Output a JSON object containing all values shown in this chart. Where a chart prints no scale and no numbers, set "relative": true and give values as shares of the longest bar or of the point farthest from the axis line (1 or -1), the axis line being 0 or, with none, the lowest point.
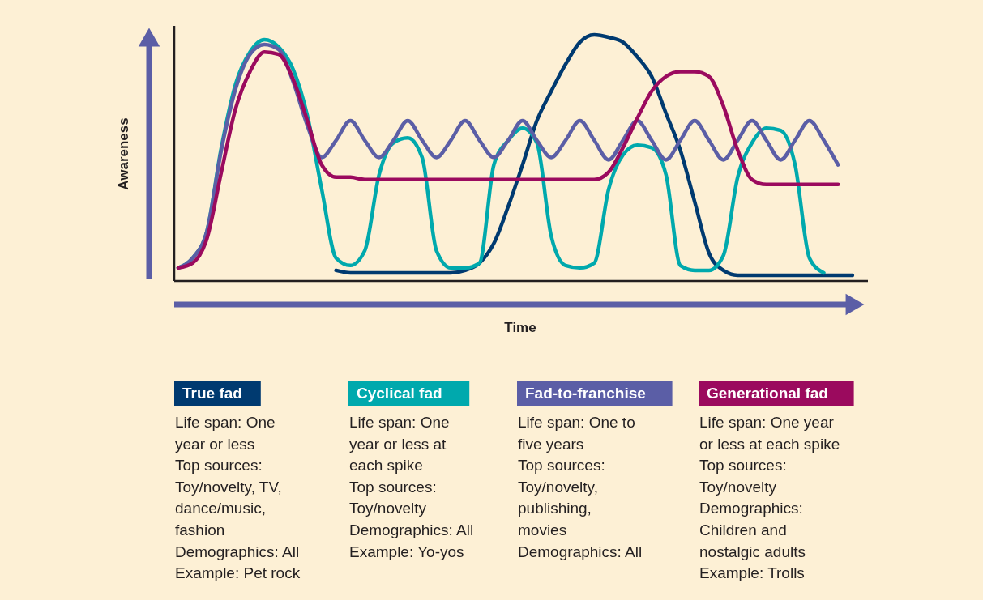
{
  "chart_data": {
    "type": "line",
    "relative": true,
    "xlabel": "Time",
    "ylabel": "Awareness",
    "legend": "bottom",
    "categories": [
      null,
      null,
      null,
      null,
      null,
      null,
      null,
      null,
      null,
      null,
      null,
      null,
      null,
      null,
      null,
      null,
      null,
      null,
      null,
      null,
      null,
      null,
      null,
      null,
      null,
      null,
      null,
      null,
      null,
      null,
      null,
      null,
      null,
      null,
      null,
      null,
      null,
      null,
      null,
      null,
      null,
      null,
      null,
      null,
      null,
      null,
      null,
      null,
      null
    ],
    "series": [
      {
        "name": "True fad",
        "color": "#003a70",
        "values": [
          null,
          null,
          null,
          null,
          null,
          null,
          null,
          null,
          null,
          null,
          null,
          0.04,
          0.03,
          0.03,
          0.03,
          0.03,
          0.03,
          0.03,
          0.03,
          0.03,
          0.04,
          0.07,
          0.15,
          0.3,
          0.47,
          0.65,
          0.77,
          0.88,
          0.97,
          1.0,
          0.99,
          0.97,
          0.91,
          0.83,
          0.68,
          0.53,
          0.32,
          0.11,
          0.04,
          0.02,
          0.02,
          0.02,
          0.02,
          0.02,
          0.02,
          0.02,
          0.02,
          0.02,
          null
        ]
      },
      {
        "name": "Cyclical fad",
        "color": "#00a9ad",
        "values": [
          0.05,
          0.09,
          0.2,
          0.54,
          0.8,
          0.93,
          0.98,
          0.95,
          0.86,
          0.67,
          0.37,
          0.09,
          0.06,
          0.12,
          0.43,
          0.56,
          0.58,
          0.5,
          0.12,
          0.05,
          0.05,
          0.07,
          0.47,
          0.57,
          0.62,
          0.56,
          0.18,
          0.06,
          0.05,
          0.07,
          0.37,
          0.51,
          0.55,
          0.54,
          0.43,
          0.06,
          0.04,
          0.04,
          0.1,
          0.42,
          0.56,
          0.62,
          0.61,
          0.47,
          0.09,
          0.03,
          null,
          null,
          null
        ]
      },
      {
        "name": "Fad-to-franchise",
        "color": "#5b5ea6",
        "values": [
          0.05,
          0.09,
          0.2,
          0.53,
          0.78,
          0.92,
          0.96,
          0.94,
          0.81,
          0.63,
          0.5,
          0.57,
          0.65,
          0.57,
          0.5,
          0.57,
          0.65,
          0.57,
          0.5,
          0.57,
          0.65,
          0.57,
          0.5,
          0.57,
          0.65,
          0.57,
          0.5,
          0.57,
          0.65,
          0.57,
          0.49,
          0.57,
          0.65,
          0.57,
          0.49,
          0.57,
          0.65,
          0.57,
          0.49,
          0.57,
          0.65,
          0.57,
          0.49,
          0.57,
          0.65,
          0.57,
          0.47,
          null,
          null
        ]
      },
      {
        "name": "Generational fad",
        "color": "#9b0a5e",
        "values": [
          0.05,
          0.07,
          0.17,
          0.44,
          0.7,
          0.85,
          0.93,
          0.92,
          0.82,
          0.65,
          0.47,
          0.42,
          0.42,
          0.41,
          0.41,
          0.41,
          0.41,
          0.41,
          0.41,
          0.41,
          0.41,
          0.41,
          0.41,
          0.41,
          0.41,
          0.41,
          0.41,
          0.41,
          0.41,
          0.41,
          0.44,
          0.54,
          0.66,
          0.77,
          0.83,
          0.85,
          0.85,
          0.83,
          0.71,
          0.53,
          0.41,
          0.39,
          0.39,
          0.39,
          0.39,
          0.39,
          0.39,
          null,
          null
        ]
      }
    ],
    "annotations": [
      "Life span: One\nyear or less\nTop sources:\nToy/novelty, TV,\ndance/music,\nfashion\nDemographics: All\nExample: Pet rock",
      "Life span: One\nyear or less at\neach spike\nTop sources:\nToy/novelty\nDemographics: All\nExample: Yo-yos",
      "Life span: One to\nfive years\nTop sources:\nToy/novelty,\npublishing,\nmovies\nDemographics: All",
      "Life span: One year\nor less at each spike\nTop sources:\nToy/novelty\nDemographics:\nChildren and\nnostalgic adults\nExample: Trolls"
    ]
  }
}
